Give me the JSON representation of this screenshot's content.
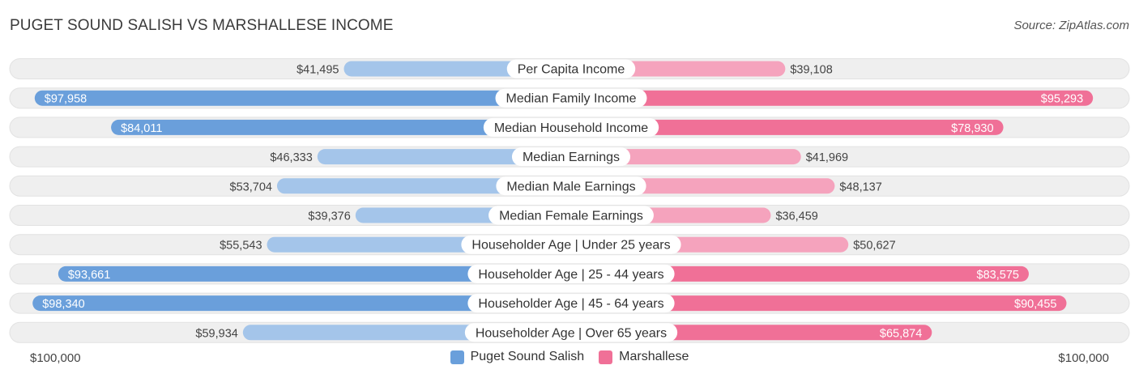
{
  "header": {
    "title": "PUGET SOUND SALISH VS MARSHALLESE INCOME",
    "source": "Source: ZipAtlas.com"
  },
  "axis": {
    "left_label": "$100,000",
    "right_label": "$100,000"
  },
  "legend": {
    "left": "Puget Sound Salish",
    "right": "Marshallese"
  },
  "colors": {
    "left_strong": "#6a9fdb",
    "left_light": "#a4c5ea",
    "right_strong": "#f07097",
    "right_light": "#f5a3bd",
    "track": "#efefef"
  },
  "chart_data": {
    "type": "bar",
    "orientation": "diverging-horizontal",
    "title": "PUGET SOUND SALISH VS MARSHALLESE INCOME",
    "xlim": [
      0,
      100000
    ],
    "categories": [
      "Per Capita Income",
      "Median Family Income",
      "Median Household Income",
      "Median Earnings",
      "Median Male Earnings",
      "Median Female Earnings",
      "Householder Age | Under 25 years",
      "Householder Age | 25 - 44 years",
      "Householder Age | 45 - 64 years",
      "Householder Age | Over 65 years"
    ],
    "series": [
      {
        "name": "Puget Sound Salish",
        "side": "left",
        "values": [
          41495,
          97958,
          84011,
          46333,
          53704,
          39376,
          55543,
          93661,
          98340,
          59934
        ],
        "labels": [
          "$41,495",
          "$97,958",
          "$84,011",
          "$46,333",
          "$53,704",
          "$39,376",
          "$55,543",
          "$93,661",
          "$98,340",
          "$59,934"
        ]
      },
      {
        "name": "Marshallese",
        "side": "right",
        "values": [
          39108,
          95293,
          78930,
          41969,
          48137,
          36459,
          50627,
          83575,
          90455,
          65874
        ],
        "labels": [
          "$39,108",
          "$95,293",
          "$78,930",
          "$41,969",
          "$48,137",
          "$36,459",
          "$50,627",
          "$83,575",
          "$90,455",
          "$65,874"
        ]
      }
    ]
  }
}
